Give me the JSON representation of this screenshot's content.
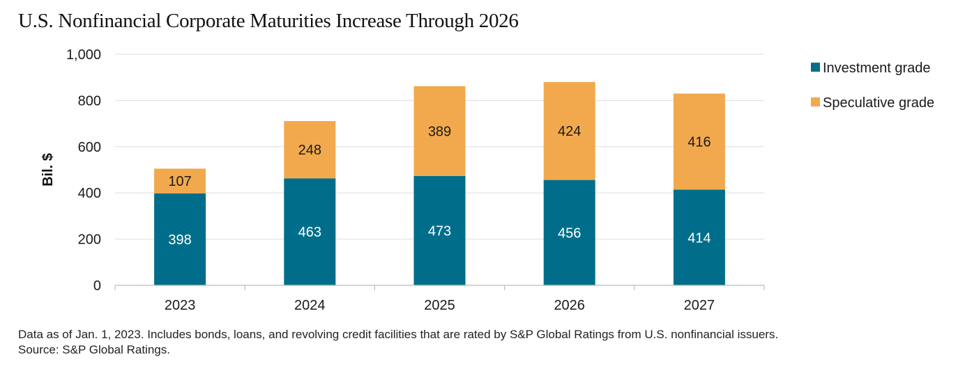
{
  "title": "U.S. Nonfinancial Corporate Maturities Increase Through 2026",
  "footnote": "Data as of Jan. 1, 2023. Includes bonds, loans, and revolving credit facilities that are rated by S&P Global Ratings from U.S. nonfinancial issuers. Source: S&P Global Ratings.",
  "chart_data": {
    "type": "bar",
    "stacked": true,
    "categories": [
      "2023",
      "2024",
      "2025",
      "2026",
      "2027"
    ],
    "series": [
      {
        "name": "Investment grade",
        "values": [
          398,
          463,
          473,
          456,
          414
        ],
        "color": "#006e8a",
        "label_color": "#ffffff"
      },
      {
        "name": "Speculative grade",
        "values": [
          107,
          248,
          389,
          424,
          416
        ],
        "color": "#f2a94e",
        "label_color": "#1a1a1a"
      }
    ],
    "ylabel": "Bil. $",
    "ylim": [
      0,
      1000
    ],
    "yticks": [
      0,
      200,
      400,
      600,
      800,
      1000
    ],
    "ytick_labels": [
      "0",
      "200",
      "400",
      "600",
      "800",
      "1,000"
    ],
    "grid": true,
    "legend": "right"
  }
}
